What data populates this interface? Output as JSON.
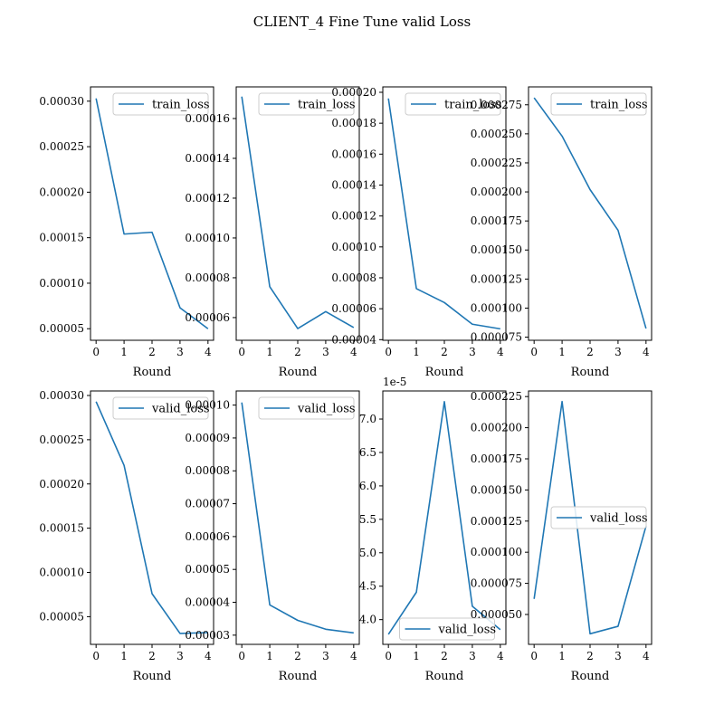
{
  "title": "CLIENT_4 Fine Tune valid Loss",
  "chart_data": [
    {
      "type": "line",
      "series": [
        {
          "name": "train_loss",
          "x": [
            0,
            1,
            2,
            3,
            4
          ],
          "values": [
            0.000303,
            0.000154,
            0.000156,
            7.3e-05,
            5e-05
          ]
        }
      ],
      "xlabel": "Round",
      "xlim": [
        -0.2,
        4.2
      ],
      "ylim": [
        3.73e-05,
        0.0003157
      ],
      "xticks": [
        0,
        1,
        2,
        3,
        4
      ],
      "yticks": [
        5e-05,
        0.0001,
        0.00015,
        0.0002,
        0.00025,
        0.0003
      ],
      "ytick_labels": [
        "0.00005",
        "0.00010",
        "0.00015",
        "0.00020",
        "0.00025",
        "0.00030"
      ],
      "y_offset": "",
      "legend": "upper right"
    },
    {
      "type": "line",
      "series": [
        {
          "name": "train_loss",
          "x": [
            0,
            1,
            2,
            3,
            4
          ],
          "values": [
            0.000171,
            7.55e-05,
            5.45e-05,
            6.3e-05,
            5.5e-05
          ]
        }
      ],
      "xlabel": "Round",
      "xlim": [
        -0.2,
        4.2
      ],
      "ylim": [
        4.86e-05,
        0.0001759
      ],
      "xticks": [
        0,
        1,
        2,
        3,
        4
      ],
      "yticks": [
        6e-05,
        8e-05,
        0.0001,
        0.00012,
        0.00014,
        0.00016
      ],
      "ytick_labels": [
        "0.00006",
        "0.00008",
        "0.00010",
        "0.00012",
        "0.00014",
        "0.00016"
      ],
      "y_offset": "",
      "legend": "upper right"
    },
    {
      "type": "line",
      "series": [
        {
          "name": "train_loss",
          "x": [
            0,
            1,
            2,
            3,
            4
          ],
          "values": [
            0.000196,
            7.3e-05,
            6.4e-05,
            5e-05,
            4.7e-05
          ]
        }
      ],
      "xlabel": "Round",
      "xlim": [
        -0.2,
        4.2
      ],
      "ylim": [
        3.96e-05,
        0.0002035
      ],
      "xticks": [
        0,
        1,
        2,
        3,
        4
      ],
      "yticks": [
        4e-05,
        6e-05,
        8e-05,
        0.0001,
        0.00012,
        0.00014,
        0.00016,
        0.00018,
        0.0002
      ],
      "ytick_labels": [
        "0.00004",
        "0.00006",
        "0.00008",
        "0.00010",
        "0.00012",
        "0.00014",
        "0.00016",
        "0.00018",
        "0.00020"
      ],
      "y_offset": "",
      "legend": "upper right"
    },
    {
      "type": "line",
      "series": [
        {
          "name": "train_loss",
          "x": [
            0,
            1,
            2,
            3,
            4
          ],
          "values": [
            0.000281,
            0.000248,
            0.000202,
            0.000167,
            8.25e-05
          ]
        }
      ],
      "xlabel": "Round",
      "xlim": [
        -0.2,
        4.2
      ],
      "ylim": [
        7.23e-05,
        0.0002904
      ],
      "xticks": [
        0,
        1,
        2,
        3,
        4
      ],
      "yticks": [
        7.5e-05,
        0.0001,
        0.000125,
        0.00015,
        0.000175,
        0.0002,
        0.000225,
        0.00025,
        0.000275
      ],
      "ytick_labels": [
        "0.000075",
        "0.000100",
        "0.000125",
        "0.000150",
        "0.000175",
        "0.000200",
        "0.000225",
        "0.000250",
        "0.000275"
      ],
      "y_offset": "",
      "legend": "upper right"
    },
    {
      "type": "line",
      "series": [
        {
          "name": "valid_loss",
          "x": [
            0,
            1,
            2,
            3,
            4
          ],
          "values": [
            0.000293,
            0.000221,
            7.6e-05,
            3.1e-05,
            3.2e-05
          ]
        }
      ],
      "xlabel": "Round",
      "xlim": [
        -0.2,
        4.2
      ],
      "ylim": [
        1.87e-05,
        0.0003051
      ],
      "xticks": [
        0,
        1,
        2,
        3,
        4
      ],
      "yticks": [
        5e-05,
        0.0001,
        0.00015,
        0.0002,
        0.00025,
        0.0003
      ],
      "ytick_labels": [
        "0.00005",
        "0.00010",
        "0.00015",
        "0.00020",
        "0.00025",
        "0.00030"
      ],
      "y_offset": "",
      "legend": "upper right"
    },
    {
      "type": "line",
      "series": [
        {
          "name": "valid_loss",
          "x": [
            0,
            1,
            2,
            3,
            4
          ],
          "values": [
            0.0001008,
            3.92e-05,
            3.45e-05,
            3.18e-05,
            3.07e-05
          ]
        }
      ],
      "xlabel": "Round",
      "xlim": [
        -0.2,
        4.2
      ],
      "ylim": [
        2.72e-05,
        0.0001043
      ],
      "xticks": [
        0,
        1,
        2,
        3,
        4
      ],
      "yticks": [
        3e-05,
        4e-05,
        5e-05,
        6e-05,
        7e-05,
        8e-05,
        9e-05,
        0.0001
      ],
      "ytick_labels": [
        "0.00003",
        "0.00004",
        "0.00005",
        "0.00006",
        "0.00007",
        "0.00008",
        "0.00009",
        "0.00010"
      ],
      "y_offset": "",
      "legend": "upper right"
    },
    {
      "type": "line",
      "series": [
        {
          "name": "valid_loss",
          "x": [
            0,
            1,
            2,
            3,
            4
          ],
          "values": [
            3.78e-05,
            4.41e-05,
            7.26e-05,
            4.2e-05,
            3.85e-05
          ]
        }
      ],
      "xlabel": "Round",
      "xlim": [
        -0.2,
        4.2
      ],
      "ylim": [
        3.63e-05,
        7.42e-05
      ],
      "xticks": [
        0,
        1,
        2,
        3,
        4
      ],
      "yticks": [
        4e-05,
        4.5e-05,
        5e-05,
        5.5e-05,
        6e-05,
        6.5e-05,
        7e-05
      ],
      "ytick_labels": [
        "4.0",
        "4.5",
        "5.0",
        "5.5",
        "6.0",
        "6.5",
        "7.0"
      ],
      "y_offset": "1e-5",
      "legend": "lower center"
    },
    {
      "type": "line",
      "series": [
        {
          "name": "valid_loss",
          "x": [
            0,
            1,
            2,
            3,
            4
          ],
          "values": [
            6.25e-05,
            0.000221,
            3.45e-05,
            4.05e-05,
            0.000121
          ]
        }
      ],
      "xlabel": "Round",
      "xlim": [
        -0.2,
        4.2
      ],
      "ylim": [
        2.6e-05,
        0.0002295
      ],
      "xticks": [
        0,
        1,
        2,
        3,
        4
      ],
      "yticks": [
        5e-05,
        7.5e-05,
        0.0001,
        0.000125,
        0.00015,
        0.000175,
        0.0002,
        0.000225
      ],
      "ytick_labels": [
        "0.000050",
        "0.000075",
        "0.000100",
        "0.000125",
        "0.000150",
        "0.000175",
        "0.000200",
        "0.000225"
      ],
      "y_offset": "",
      "legend": "center right"
    }
  ]
}
